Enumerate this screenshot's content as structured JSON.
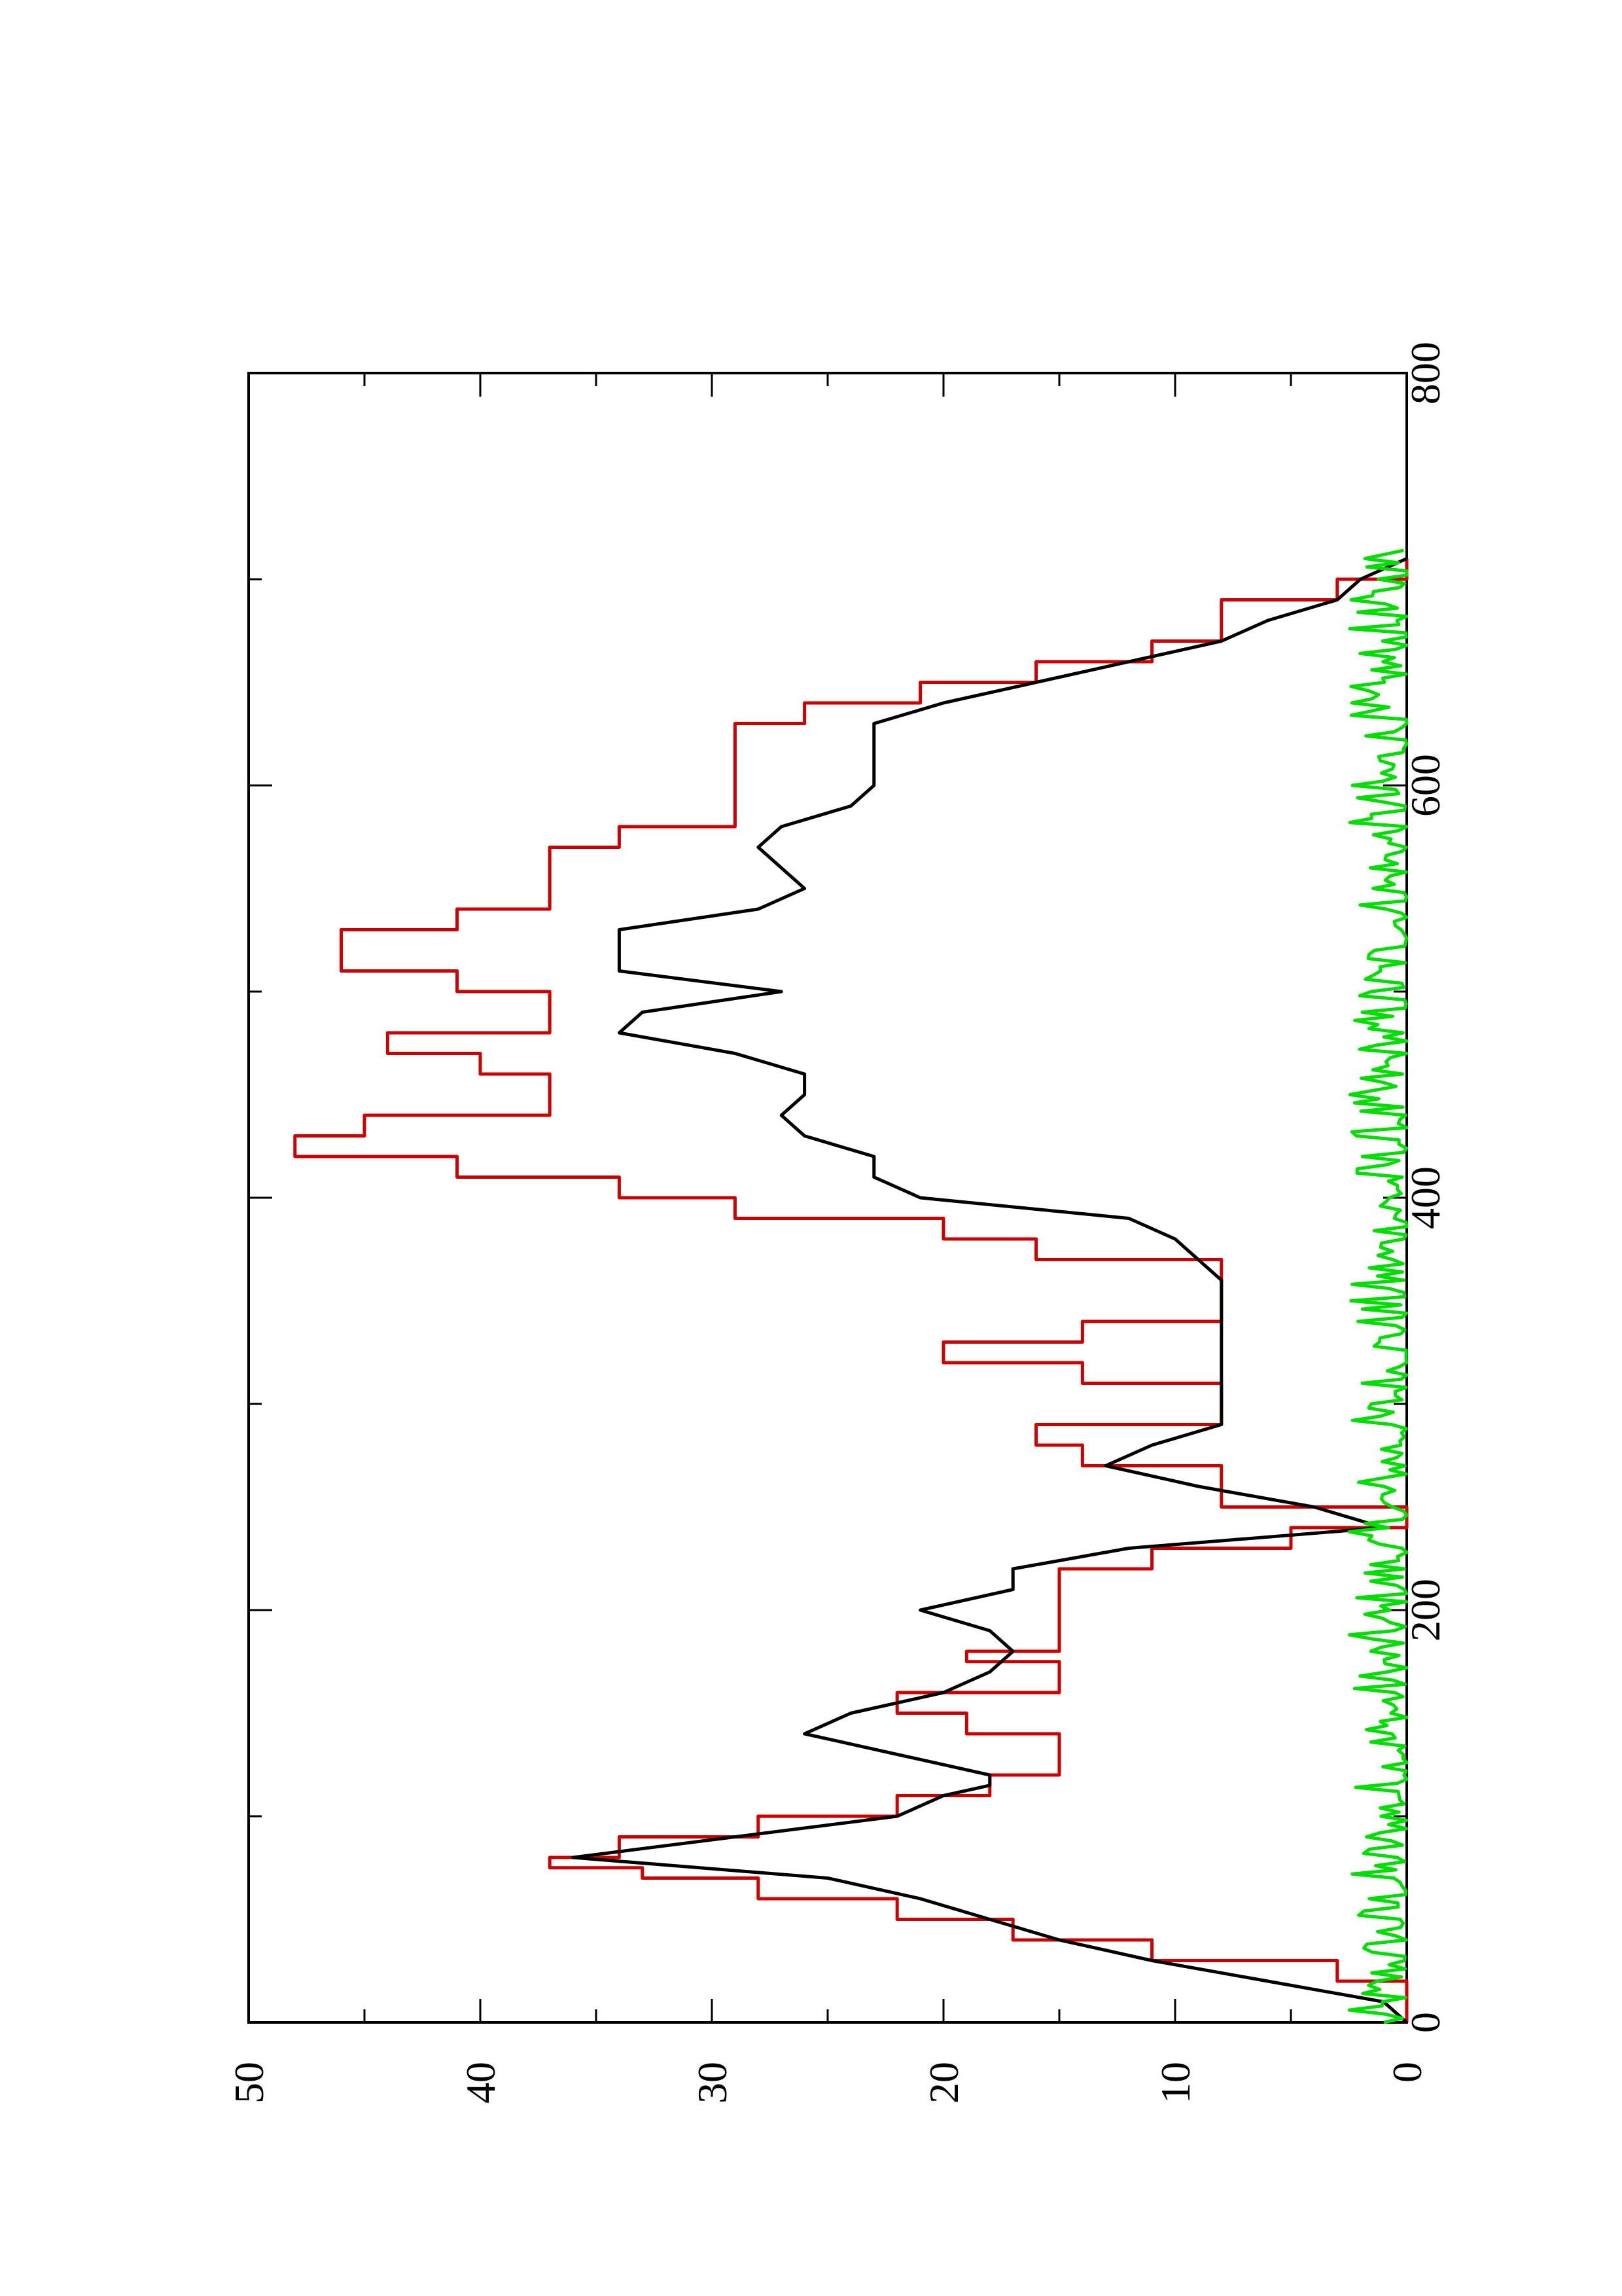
{
  "chart_data": {
    "type": "line",
    "orientation": "rotated-90-clockwise",
    "title": "",
    "xlabel": "",
    "ylabel": "",
    "xlim": [
      0,
      800
    ],
    "ylim": [
      0,
      50
    ],
    "x_ticks": [
      0,
      200,
      400,
      600,
      800
    ],
    "x_minor_ticks": [
      100,
      300,
      500,
      700
    ],
    "y_ticks": [
      0,
      10,
      20,
      30,
      40,
      50
    ],
    "y_minor_ticks": [
      5,
      15,
      25,
      35,
      45
    ],
    "grid": false,
    "legend": "none",
    "series": [
      {
        "color": "#cc0000",
        "step": true,
        "x": [
          0,
          20,
          30,
          40,
          50,
          60,
          70,
          75,
          80,
          90,
          100,
          110,
          120,
          130,
          140,
          150,
          160,
          170,
          175,
          180,
          200,
          220,
          230,
          240,
          250,
          260,
          270,
          280,
          290,
          300,
          310,
          320,
          330,
          340,
          350,
          360,
          370,
          380,
          390,
          400,
          410,
          420,
          430,
          440,
          450,
          460,
          470,
          480,
          490,
          500,
          510,
          520,
          530,
          540,
          550,
          560,
          570,
          580,
          590,
          600,
          610,
          620,
          630,
          640,
          650,
          660,
          670,
          680,
          690,
          700,
          710
        ],
        "y": [
          0,
          3,
          11,
          17,
          22,
          28,
          33,
          37,
          34,
          28,
          22,
          18,
          15,
          15,
          19,
          22,
          15,
          15,
          19,
          15,
          15,
          11,
          5,
          0,
          8,
          8,
          14,
          16,
          8,
          8,
          14,
          20,
          14,
          8,
          8,
          8,
          16,
          20,
          29,
          34,
          41,
          48,
          45,
          37,
          37,
          40,
          44,
          37,
          37,
          41,
          46,
          46,
          41,
          37,
          37,
          37,
          34,
          29,
          29,
          29,
          29,
          29,
          26,
          21,
          16,
          11,
          8,
          8,
          3,
          0,
          0
        ]
      },
      {
        "color": "#000000",
        "step": false,
        "x": [
          0,
          10,
          20,
          30,
          40,
          50,
          60,
          70,
          80,
          90,
          100,
          110,
          115,
          120,
          130,
          140,
          150,
          160,
          170,
          180,
          190,
          200,
          210,
          220,
          230,
          240,
          250,
          260,
          270,
          280,
          290,
          300,
          310,
          320,
          330,
          340,
          350,
          360,
          370,
          380,
          390,
          400,
          410,
          420,
          430,
          440,
          450,
          460,
          470,
          480,
          490,
          500,
          510,
          520,
          530,
          540,
          550,
          560,
          570,
          580,
          590,
          600,
          610,
          620,
          630,
          640,
          650,
          660,
          670,
          680,
          690,
          700,
          710
        ],
        "y": [
          0,
          1,
          6,
          11,
          15,
          18,
          21,
          25,
          36,
          29,
          22,
          20,
          18,
          18,
          22,
          26,
          24,
          20,
          18,
          17,
          18,
          21,
          17,
          17,
          12,
          1,
          4,
          9,
          13,
          11,
          8,
          8,
          8,
          8,
          8,
          8,
          8,
          8,
          9,
          10,
          12,
          21,
          23,
          23,
          26,
          27,
          26,
          26,
          29,
          34,
          33,
          27,
          34,
          34,
          34,
          28,
          26,
          27,
          28,
          27,
          24,
          23,
          23,
          23,
          23,
          20,
          16,
          12,
          8,
          6,
          3,
          2,
          0
        ]
      },
      {
        "color": "#00dd00",
        "step": false,
        "noise": true,
        "x_range": [
          0,
          715
        ],
        "y_range": [
          0,
          2.5
        ]
      }
    ]
  }
}
